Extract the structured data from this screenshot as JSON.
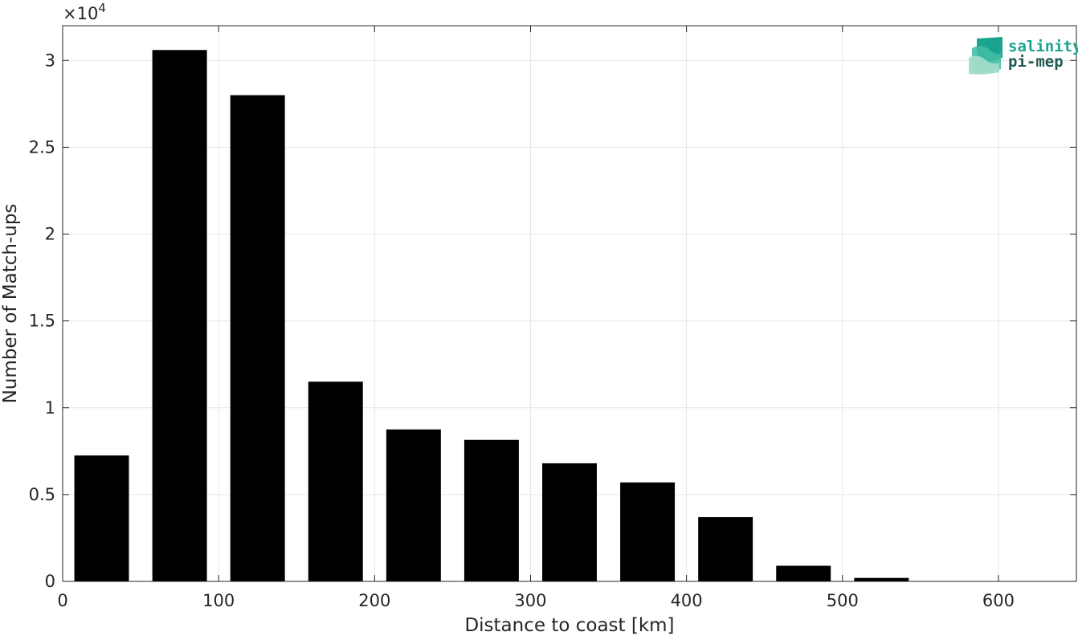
{
  "chart_data": {
    "type": "bar",
    "x_centers": [
      25,
      75,
      125,
      175,
      225,
      275,
      325,
      375,
      425,
      475,
      525,
      575
    ],
    "values": [
      7250,
      30600,
      28000,
      11500,
      8750,
      8150,
      6800,
      5700,
      3700,
      900,
      200,
      0
    ],
    "bin_width": 50,
    "xlabel": "Distance to coast [km]",
    "ylabel": "Number of Match-ups",
    "xlim": [
      0,
      650
    ],
    "ylim": [
      0,
      32000
    ],
    "x_ticks": [
      0,
      100,
      200,
      300,
      400,
      500,
      600
    ],
    "y_ticks": [
      0,
      5000,
      10000,
      15000,
      20000,
      25000,
      30000
    ],
    "y_tick_labels": [
      "0",
      "0.5",
      "1",
      "1.5",
      "2",
      "2.5",
      "3"
    ],
    "y_exponent_label": "×10",
    "y_exponent_power": "4",
    "grid": true,
    "bar_color": "#000000"
  },
  "logo": {
    "line1": "salinity",
    "line2": "pi-mep",
    "color_line1": "#1aa48f",
    "color_line2": "#1e5a52"
  }
}
